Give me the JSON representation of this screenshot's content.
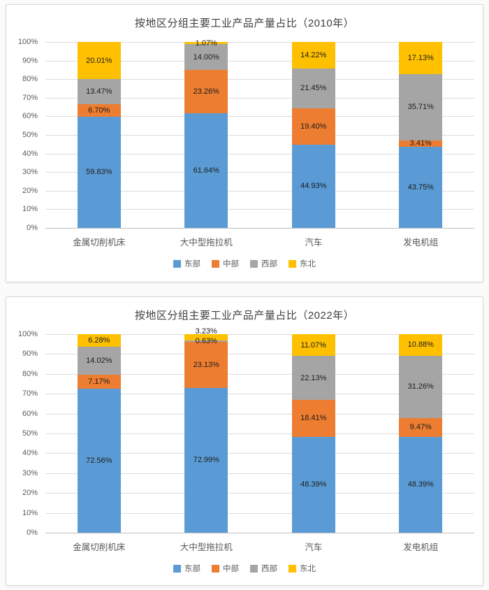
{
  "page": {
    "background": "#fbfbfb",
    "panel_border": "#d8d8d8",
    "grid_color": "#dcdcdc",
    "axis_line_color": "#bfbfbf",
    "axis_text_color": "#595959",
    "data_label_color": "#1c1c1c",
    "title_color": "#404040"
  },
  "chart_data": [
    {
      "type": "bar",
      "subtype": "stacked-100",
      "title": "按地区分组主要工业产品产量占比（2010年）",
      "categories": [
        "金属切削机床",
        "大中型拖拉机",
        "汽车",
        "发电机组"
      ],
      "series": [
        {
          "name": "东部",
          "color": "#5B9BD5",
          "values": [
            59.83,
            61.64,
            44.93,
            43.75
          ]
        },
        {
          "name": "中部",
          "color": "#ED7D31",
          "values": [
            6.7,
            23.26,
            19.4,
            3.41
          ]
        },
        {
          "name": "西部",
          "color": "#A5A5A5",
          "values": [
            13.47,
            14.0,
            21.45,
            35.71
          ]
        },
        {
          "name": "东北",
          "color": "#FFC000",
          "values": [
            20.01,
            1.07,
            14.22,
            17.13
          ]
        }
      ],
      "y_ticks": [
        "0%",
        "10%",
        "20%",
        "30%",
        "40%",
        "50%",
        "60%",
        "70%",
        "80%",
        "90%",
        "100%"
      ],
      "ylim": [
        0,
        100
      ],
      "grid": true,
      "legend_position": "bottom",
      "label_format": "percent-2dp"
    },
    {
      "type": "bar",
      "subtype": "stacked-100",
      "title": "按地区分组主要工业产品产量占比（2022年）",
      "categories": [
        "金属切削机床",
        "大中型拖拉机",
        "汽车",
        "发电机组"
      ],
      "series": [
        {
          "name": "东部",
          "color": "#5B9BD5",
          "values": [
            72.56,
            72.99,
            48.39,
            48.39
          ]
        },
        {
          "name": "中部",
          "color": "#ED7D31",
          "values": [
            7.17,
            23.13,
            18.41,
            9.47
          ]
        },
        {
          "name": "西部",
          "color": "#A5A5A5",
          "values": [
            14.02,
            0.63,
            22.13,
            31.26
          ]
        },
        {
          "name": "东北",
          "color": "#FFC000",
          "values": [
            6.28,
            3.23,
            11.07,
            10.88
          ]
        }
      ],
      "y_ticks": [
        "0%",
        "10%",
        "20%",
        "30%",
        "40%",
        "50%",
        "60%",
        "70%",
        "80%",
        "90%",
        "100%"
      ],
      "ylim": [
        0,
        100
      ],
      "grid": true,
      "legend_position": "bottom",
      "label_format": "percent-2dp"
    }
  ]
}
